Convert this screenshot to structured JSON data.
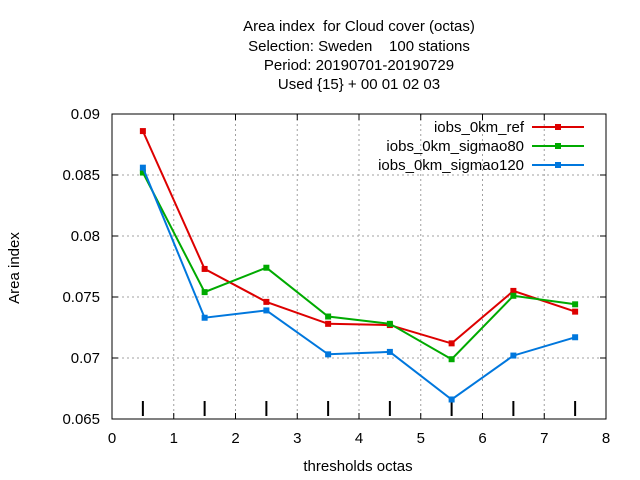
{
  "chart_data": {
    "type": "line",
    "title_lines": [
      "Area index  for Cloud cover (octas)",
      "Selection: Sweden    100 stations",
      "Period: 20190701-20190729",
      "Used {15} + 00 01 02 03"
    ],
    "xlabel": "thresholds octas",
    "ylabel": "Area index",
    "xlim": [
      0,
      8
    ],
    "ylim": [
      0.065,
      0.09
    ],
    "xticks": [
      0,
      1,
      2,
      3,
      4,
      5,
      6,
      7,
      8
    ],
    "xtick_labels": [
      "0",
      "1",
      "2",
      "3",
      "4",
      "5",
      "6",
      "7",
      "8"
    ],
    "yticks": [
      0.065,
      0.07,
      0.075,
      0.08,
      0.085,
      0.09
    ],
    "ytick_labels": [
      "0.065",
      "0.07",
      "0.075",
      "0.08",
      "0.085",
      "0.09"
    ],
    "grid": true,
    "legend_position": "top-right",
    "threshold_markers_x": [
      0.5,
      1.5,
      2.5,
      3.5,
      4.5,
      5.5,
      6.5,
      7.5
    ],
    "x": [
      0.5,
      1.5,
      2.5,
      3.5,
      4.5,
      5.5,
      6.5,
      7.5
    ],
    "series": [
      {
        "name": "iobs_0km_ref",
        "color": "#dd0000",
        "values": [
          0.0886,
          0.0773,
          0.0746,
          0.0728,
          0.0727,
          0.0712,
          0.0755,
          0.0738
        ]
      },
      {
        "name": "iobs_0km_sigmao80",
        "color": "#00aa00",
        "values": [
          0.0852,
          0.0754,
          0.0774,
          0.0734,
          0.0728,
          0.0699,
          0.0751,
          0.0744
        ]
      },
      {
        "name": "iobs_0km_sigmao120",
        "color": "#0077dd",
        "values": [
          0.0856,
          0.0733,
          0.0739,
          0.0703,
          0.0705,
          0.0666,
          0.0702,
          0.0717
        ]
      }
    ]
  }
}
